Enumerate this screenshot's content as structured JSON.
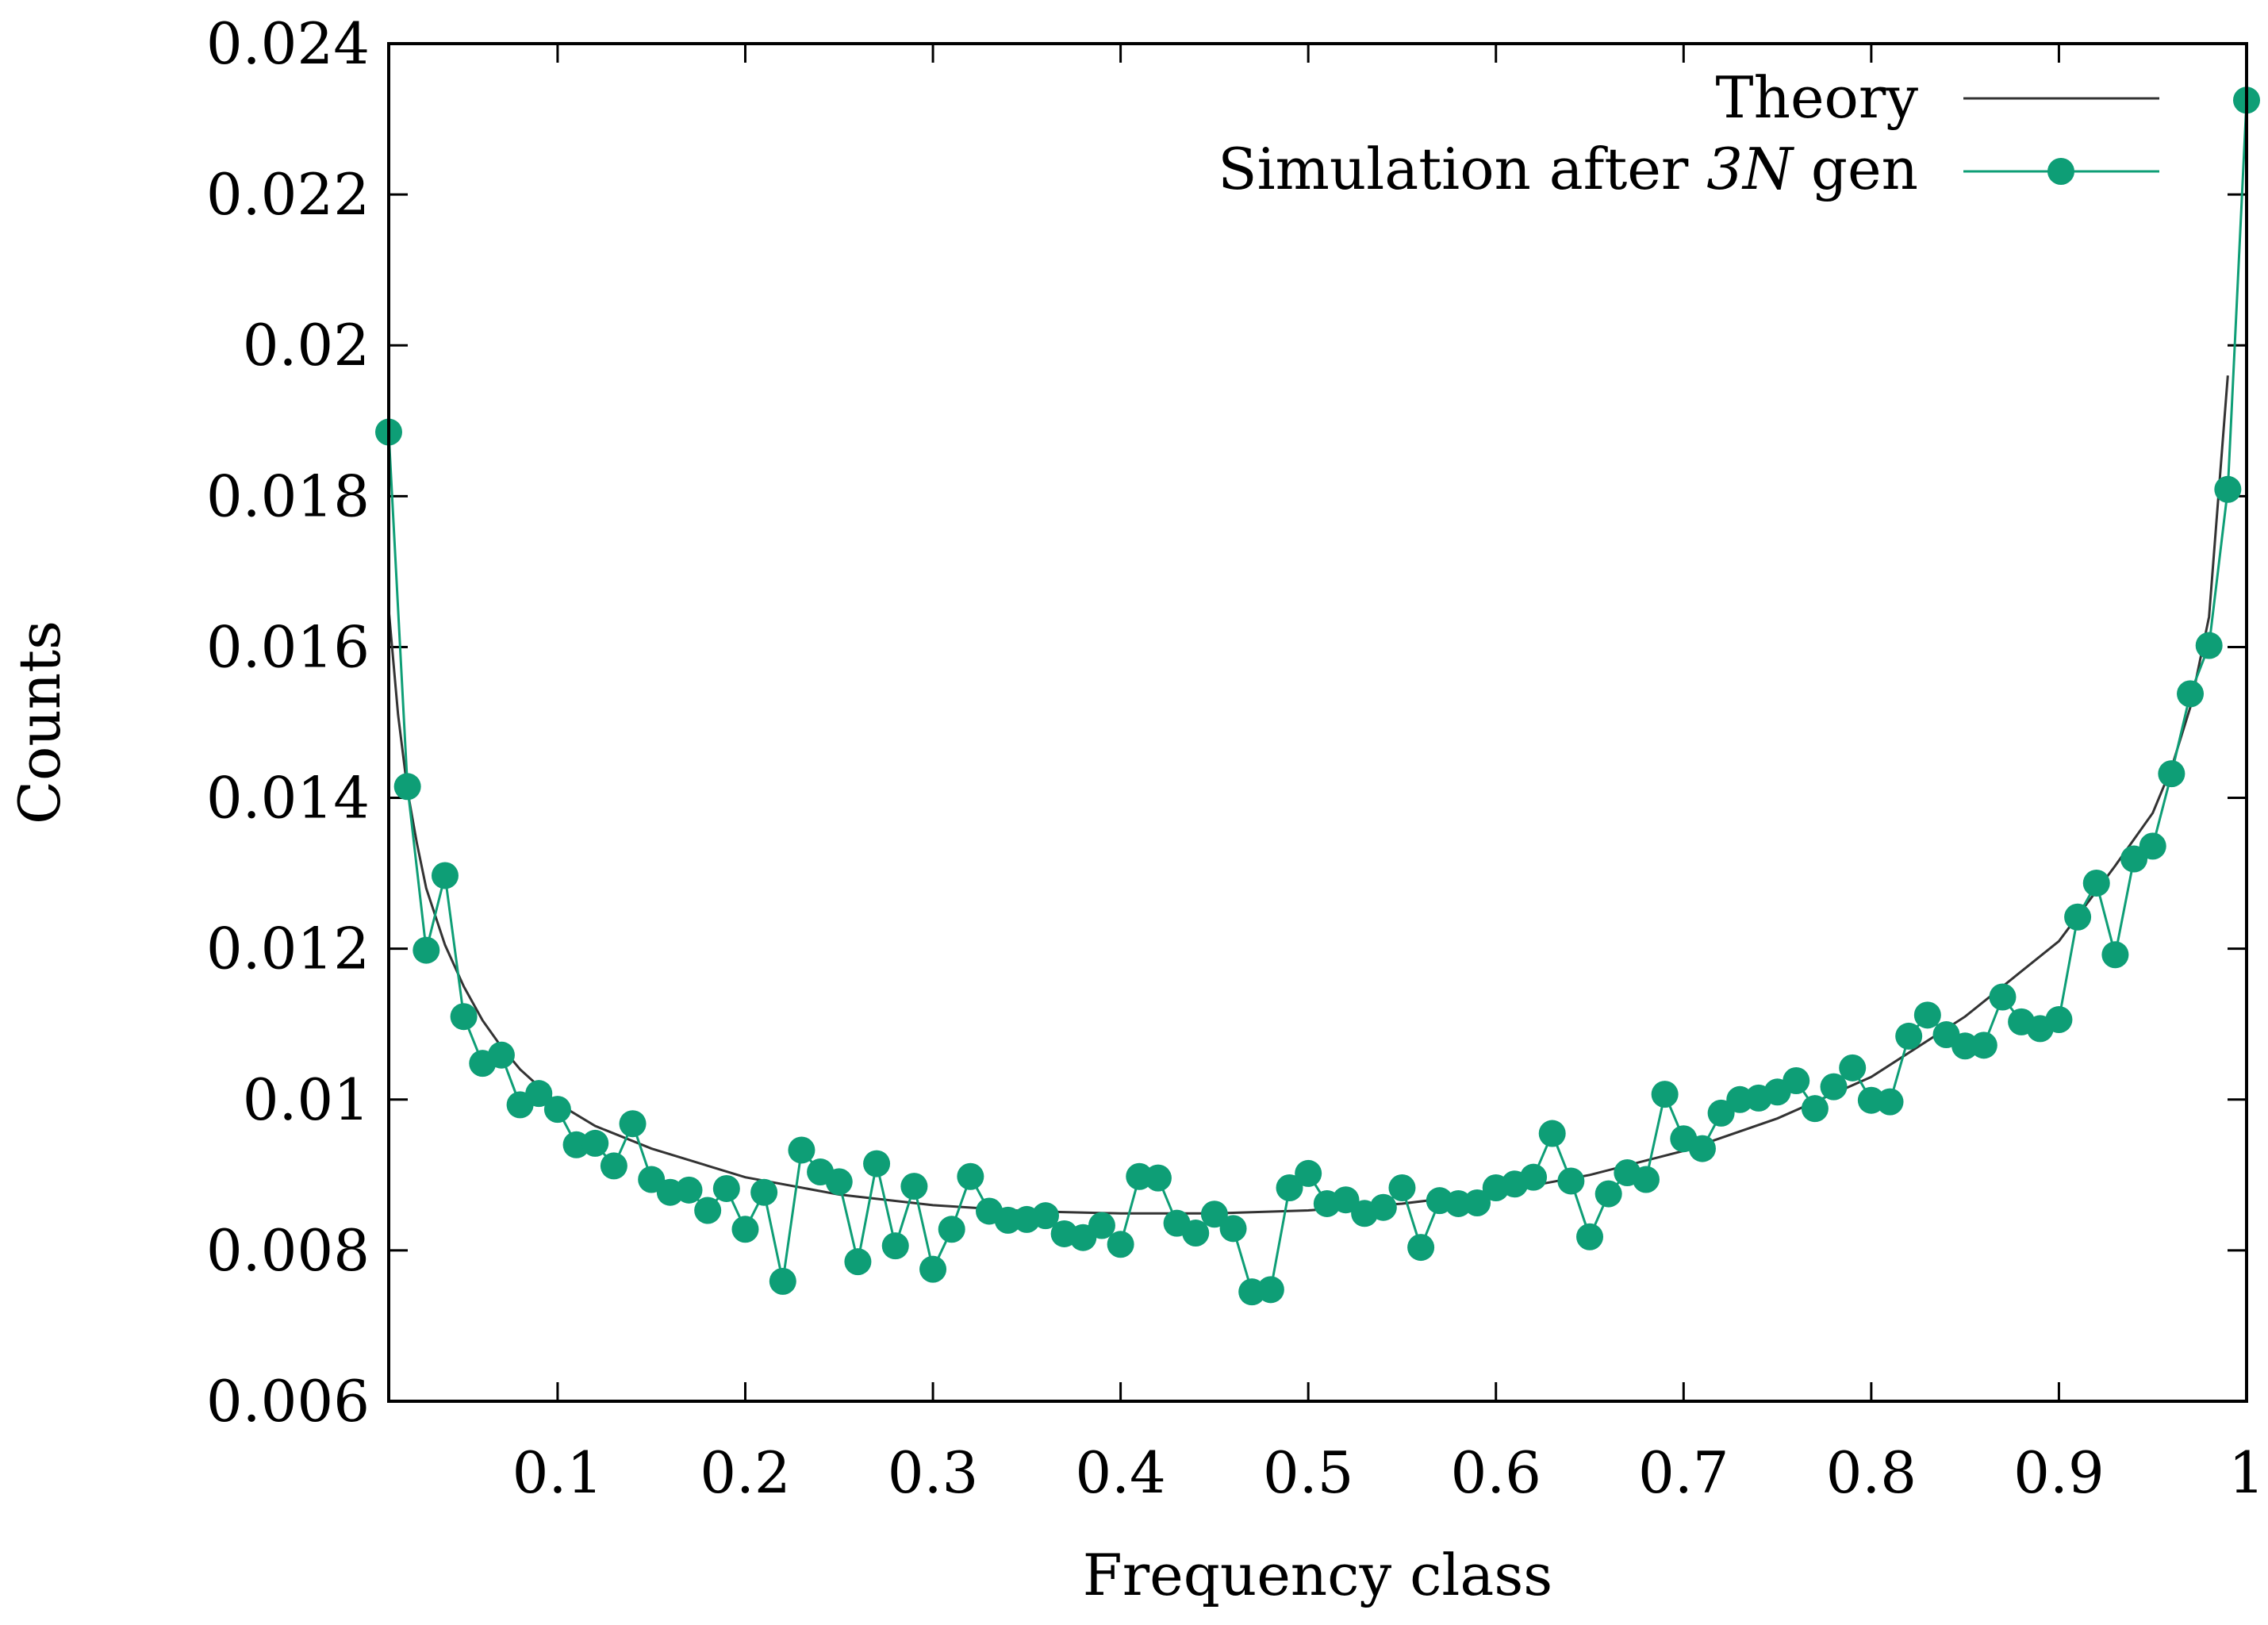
{
  "chart_data": {
    "type": "line",
    "title": "",
    "xlabel": "Frequency class",
    "ylabel": "Counts",
    "xlim": [
      0.01,
      1.0
    ],
    "ylim": [
      0.006,
      0.024
    ],
    "x_ticks": [
      0.1,
      0.2,
      0.3,
      0.4,
      0.5,
      0.6,
      0.7,
      0.8,
      0.9,
      1
    ],
    "x_tick_labels": [
      "0.1",
      "0.2",
      "0.3",
      "0.4",
      "0.5",
      "0.6",
      "0.7",
      "0.8",
      "0.9",
      "1"
    ],
    "y_ticks": [
      0.006,
      0.008,
      0.01,
      0.012,
      0.014,
      0.016,
      0.018,
      0.02,
      0.022,
      0.024
    ],
    "y_tick_labels": [
      "0.006",
      "0.008",
      "0.01",
      "0.012",
      "0.014",
      "0.016",
      "0.018",
      "0.02",
      "0.022",
      "0.024"
    ],
    "grid": false,
    "legend": {
      "position": "top-right"
    },
    "series": [
      {
        "name": "Theory",
        "color": "#333333",
        "style": "line",
        "x": [
          0.01,
          0.015,
          0.02,
          0.025,
          0.03,
          0.04,
          0.05,
          0.06,
          0.07,
          0.08,
          0.1,
          0.12,
          0.15,
          0.2,
          0.25,
          0.3,
          0.35,
          0.4,
          0.45,
          0.5,
          0.55,
          0.6,
          0.65,
          0.7,
          0.75,
          0.8,
          0.85,
          0.9,
          0.93,
          0.95,
          0.96,
          0.97,
          0.98,
          0.99
        ],
        "values": [
          0.0165,
          0.0151,
          0.0141,
          0.0134,
          0.0128,
          0.01205,
          0.0115,
          0.01105,
          0.0107,
          0.0104,
          0.00995,
          0.00965,
          0.00935,
          0.00897,
          0.00874,
          0.0086,
          0.00852,
          0.00849,
          0.00849,
          0.00853,
          0.00862,
          0.00877,
          0.009,
          0.00932,
          0.00975,
          0.0103,
          0.0111,
          0.0121,
          0.0131,
          0.0138,
          0.0144,
          0.0152,
          0.0164,
          0.0196
        ]
      },
      {
        "name": "Simulation after 3N gen",
        "legend_plain": "Simulation after ",
        "legend_math": "3N",
        "legend_suffix": " gen",
        "color": "#0e9e76",
        "style": "line-markers",
        "x": [
          0.01,
          0.02,
          0.03,
          0.04,
          0.05,
          0.06,
          0.07,
          0.08,
          0.09,
          0.1,
          0.11,
          0.12,
          0.13,
          0.14,
          0.15,
          0.16,
          0.17,
          0.18,
          0.19,
          0.2,
          0.21,
          0.22,
          0.23,
          0.24,
          0.25,
          0.26,
          0.27,
          0.28,
          0.29,
          0.3,
          0.31,
          0.32,
          0.33,
          0.34,
          0.35,
          0.36,
          0.37,
          0.38,
          0.39,
          0.4,
          0.41,
          0.42,
          0.43,
          0.44,
          0.45,
          0.46,
          0.47,
          0.48,
          0.49,
          0.5,
          0.51,
          0.52,
          0.53,
          0.54,
          0.55,
          0.56,
          0.57,
          0.58,
          0.59,
          0.6,
          0.61,
          0.62,
          0.63,
          0.64,
          0.65,
          0.66,
          0.67,
          0.68,
          0.69,
          0.7,
          0.71,
          0.72,
          0.73,
          0.74,
          0.75,
          0.76,
          0.77,
          0.78,
          0.79,
          0.8,
          0.81,
          0.82,
          0.83,
          0.84,
          0.85,
          0.86,
          0.87,
          0.88,
          0.89,
          0.9,
          0.91,
          0.92,
          0.93,
          0.94,
          0.95,
          0.96,
          0.97,
          0.98,
          0.99,
          1.0
        ],
        "values": [
          0.01885,
          0.01415,
          0.01198,
          0.01297,
          0.0111,
          0.01048,
          0.01059,
          0.00993,
          0.01008,
          0.00987,
          0.0094,
          0.00942,
          0.00912,
          0.00968,
          0.00894,
          0.00877,
          0.0088,
          0.00853,
          0.00882,
          0.00828,
          0.00877,
          0.00759,
          0.00933,
          0.00904,
          0.00891,
          0.00785,
          0.00915,
          0.00806,
          0.00885,
          0.00775,
          0.00828,
          0.00898,
          0.00852,
          0.0084,
          0.00841,
          0.00846,
          0.00822,
          0.00817,
          0.00833,
          0.00808,
          0.00898,
          0.00896,
          0.00836,
          0.00823,
          0.00848,
          0.00829,
          0.00745,
          0.00748,
          0.00883,
          0.00902,
          0.00862,
          0.00867,
          0.00849,
          0.00857,
          0.00883,
          0.00804,
          0.00866,
          0.00862,
          0.00863,
          0.00883,
          0.00888,
          0.00897,
          0.00955,
          0.00892,
          0.00818,
          0.00875,
          0.00903,
          0.00894,
          0.01007,
          0.00948,
          0.00935,
          0.00982,
          0.01,
          0.01002,
          0.0101,
          0.01025,
          0.00988,
          0.01017,
          0.01042,
          0.00999,
          0.00997,
          0.01084,
          0.01112,
          0.01086,
          0.01071,
          0.01072,
          0.01136,
          0.01103,
          0.01094,
          0.01106,
          0.01242,
          0.01287,
          0.01192,
          0.01319,
          0.01336,
          0.01432,
          0.01538,
          0.01602,
          0.01809,
          0.02325
        ]
      }
    ]
  }
}
